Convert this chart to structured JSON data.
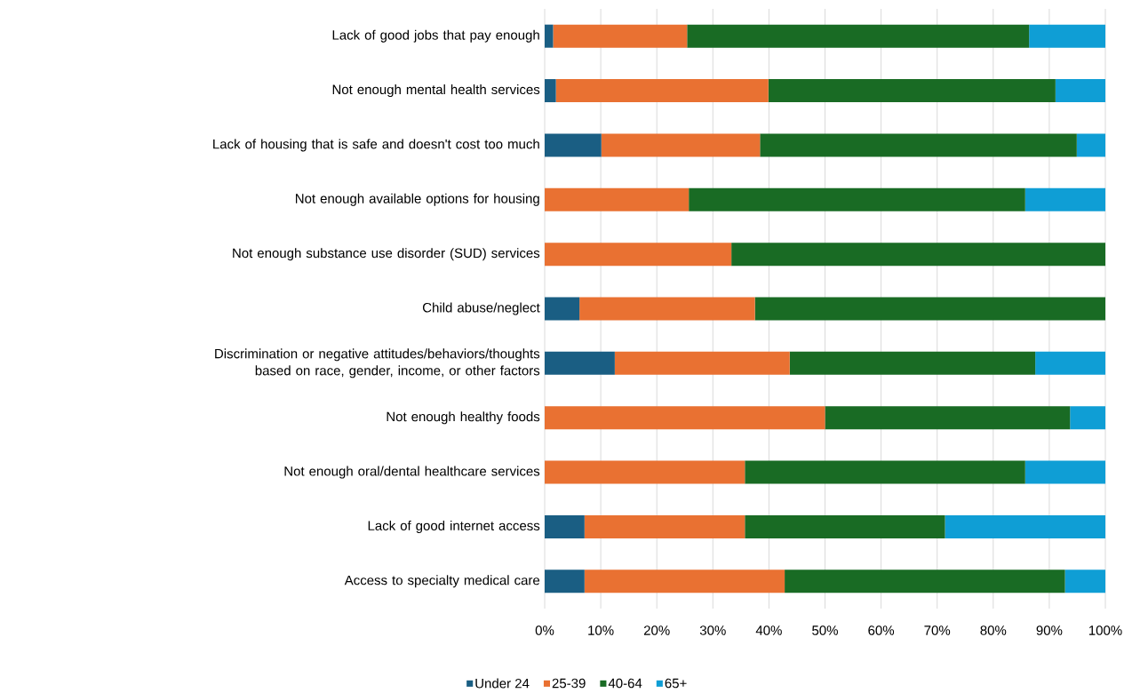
{
  "chart_data": {
    "type": "bar",
    "orientation": "horizontal",
    "stacked": true,
    "categories": [
      "Lack of good jobs that pay enough",
      "Not enough mental health services",
      "Lack of housing that is safe and doesn't cost too much",
      "Not enough available options for housing",
      "Not enough substance use disorder (SUD) services",
      "Child abuse/neglect",
      "Discrimination or negative attitudes/behaviors/thoughts based on race, gender, income, or other factors",
      "Not enough healthy foods",
      "Not enough oral/dental healthcare services",
      "Lack of good internet access",
      "Access to specialty medical care"
    ],
    "series": [
      {
        "name": "Under 24",
        "color": "#1a5e83",
        "values": [
          1.5,
          2.0,
          10.1,
          0,
          0,
          6.2,
          12.5,
          0,
          0,
          7.1,
          7.1
        ]
      },
      {
        "name": "25-39",
        "color": "#e97132",
        "values": [
          23.9,
          37.9,
          28.3,
          25.7,
          33.3,
          31.3,
          31.2,
          50.0,
          35.7,
          28.6,
          35.7
        ]
      },
      {
        "name": "40-64",
        "color": "#196b24",
        "values": [
          61.0,
          51.2,
          56.5,
          60.0,
          66.7,
          62.5,
          43.8,
          43.7,
          50.0,
          35.7,
          50.0
        ]
      },
      {
        "name": "65+",
        "color": "#0f9ed5",
        "values": [
          13.6,
          8.9,
          5.1,
          14.3,
          0,
          0,
          12.5,
          6.3,
          14.3,
          28.6,
          7.2
        ]
      }
    ],
    "xlim": [
      0,
      100
    ],
    "xticks": [
      {
        "value": 0,
        "label": "0%"
      },
      {
        "value": 10,
        "label": "10%"
      },
      {
        "value": 20,
        "label": "20%"
      },
      {
        "value": 30,
        "label": "30%"
      },
      {
        "value": 40,
        "label": "40%"
      },
      {
        "value": 50,
        "label": "50%"
      },
      {
        "value": 60,
        "label": "60%"
      },
      {
        "value": 70,
        "label": "70%"
      },
      {
        "value": 80,
        "label": "80%"
      },
      {
        "value": 90,
        "label": "90%"
      },
      {
        "value": 100,
        "label": "100%"
      }
    ],
    "grid": "x",
    "legend": "bottom"
  }
}
